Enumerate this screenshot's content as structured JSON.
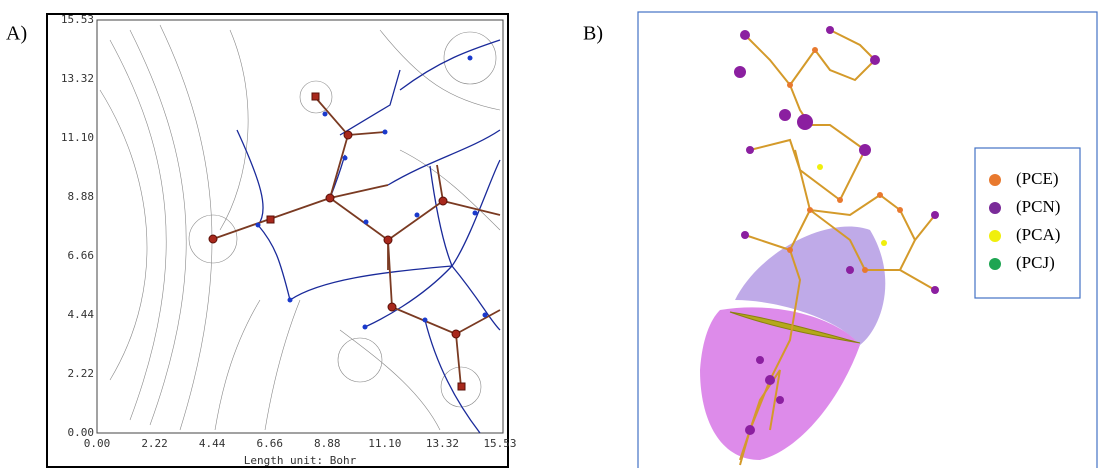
{
  "panel_a": {
    "label": "A)",
    "yticks": [
      "0.00",
      "2.22",
      "4.44",
      "6.66",
      "8.88",
      "11.10",
      "13.32",
      "15.53"
    ],
    "xticks": [
      "0.00",
      "2.22",
      "4.44",
      "6.66",
      "8.88",
      "11.10",
      "13.32",
      "15.53"
    ],
    "x_label": "Length unit: Bohr"
  },
  "panel_b": {
    "label": "B)",
    "legend": [
      {
        "name": "(PCE)",
        "color": "#e8792e"
      },
      {
        "name": "(PCN)",
        "color": "#7a2b99"
      },
      {
        "name": "(PCA)",
        "color": "#f0ef0c"
      },
      {
        "name": "(PCJ)",
        "color": "#1ea552"
      }
    ]
  }
}
